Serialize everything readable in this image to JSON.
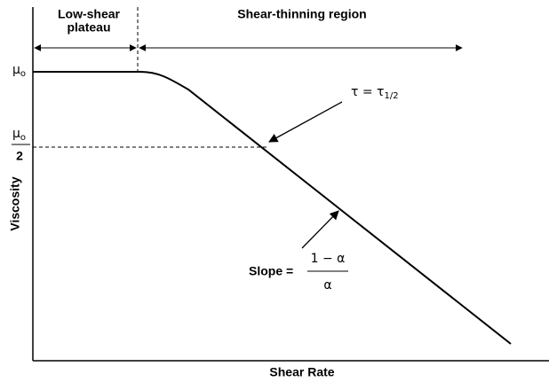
{
  "regions": {
    "plateau": [
      "Low-shear",
      "plateau"
    ],
    "thinning": "Shear-thinning region"
  },
  "axes": {
    "y_label": "Viscosity",
    "x_label": "Shear Rate"
  },
  "y_markers": {
    "mu0": {
      "symbol": "μ",
      "subscript": "o"
    },
    "half": {
      "symbol": "μ",
      "subscript": "o",
      "denominator": "2"
    }
  },
  "annotations": {
    "tau": {
      "lhs": "τ = τ",
      "subscript": "1/2"
    },
    "slope": {
      "label": "Slope =",
      "numerator": "1 − α",
      "denominator": "α"
    }
  }
}
